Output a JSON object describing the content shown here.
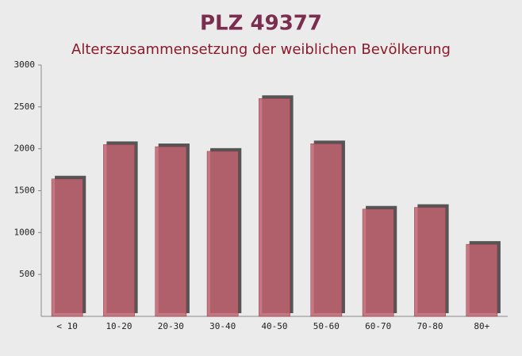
{
  "chart_data": {
    "type": "bar",
    "title": "PLZ 49377",
    "subtitle": "Alterszusammensetzung der weiblichen Bevölkerung",
    "categories": [
      "< 10",
      "10-20",
      "20-30",
      "30-40",
      "40-50",
      "50-60",
      "60-70",
      "70-80",
      "80+"
    ],
    "values": [
      1640,
      2050,
      2025,
      1970,
      2600,
      2060,
      1280,
      1300,
      860
    ],
    "color": "#c0636e",
    "ylim": [
      0,
      3000
    ],
    "yticks": [
      500,
      1000,
      1500,
      2000,
      2500,
      3000
    ],
    "grid": false
  }
}
